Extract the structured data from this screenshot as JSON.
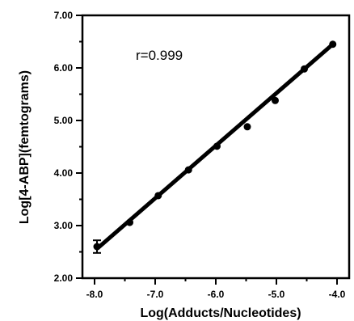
{
  "chart_data": {
    "type": "scatter",
    "title": "",
    "xlabel": "Log(Adducts/Nucleotides)",
    "ylabel": "Log[4-ABP](femtograms)",
    "xlim": [
      -8.2,
      -3.8
    ],
    "ylim": [
      2.0,
      7.0
    ],
    "xticks": [
      -8.0,
      -7.0,
      -6.0,
      -5.0,
      -4.0
    ],
    "xtick_labels": [
      "-8.0",
      "-7.0",
      "-6.0",
      "-5.0",
      "-4.0"
    ],
    "yticks": [
      2.0,
      3.0,
      4.0,
      5.0,
      6.0,
      7.0
    ],
    "ytick_labels": [
      "2.00",
      "3.00",
      "4.00",
      "5.00",
      "6.00",
      "7.00"
    ],
    "grid": false,
    "annotation": "r=0.999",
    "points": [
      {
        "x": -7.96,
        "y": 2.6,
        "err": 0.12
      },
      {
        "x": -7.42,
        "y": 3.06
      },
      {
        "x": -6.95,
        "y": 3.57
      },
      {
        "x": -6.45,
        "y": 4.06
      },
      {
        "x": -5.98,
        "y": 4.51
      },
      {
        "x": -5.48,
        "y": 4.88
      },
      {
        "x": -5.02,
        "y": 5.38
      },
      {
        "x": -4.54,
        "y": 5.98
      },
      {
        "x": -4.07,
        "y": 6.45
      }
    ],
    "fit_line": {
      "x": [
        -7.96,
        -4.07
      ],
      "y": [
        2.56,
        6.45
      ]
    }
  }
}
